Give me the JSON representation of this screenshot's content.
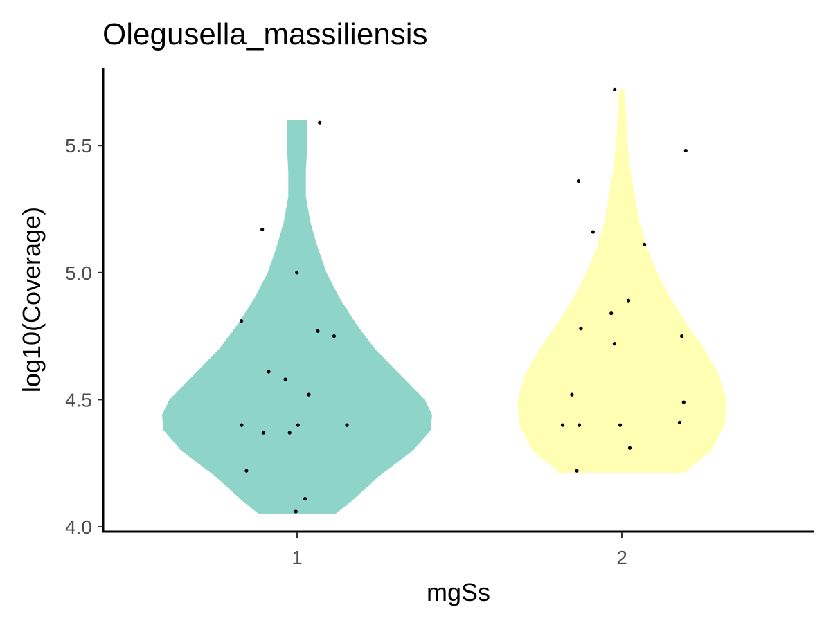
{
  "chart_data": {
    "type": "violin",
    "title": "Olegusella_massiliensis",
    "xlabel": "mgSs",
    "ylabel": "log10(Coverage)",
    "categories": [
      "1",
      "2"
    ],
    "ylim": [
      3.98,
      5.75
    ],
    "yticks": [
      "4.0",
      "4.5",
      "5.0",
      "5.5"
    ],
    "grid": false,
    "legend": "none",
    "colors": {
      "1": "#8ed4c8",
      "2": "#ffffb3",
      "points": "#000000",
      "axis": "#000000"
    },
    "violins": [
      {
        "category": "1",
        "min": 4.05,
        "max": 5.6,
        "density": [
          [
            4.05,
            0.26
          ],
          [
            4.1,
            0.37
          ],
          [
            4.2,
            0.56
          ],
          [
            4.3,
            0.79
          ],
          [
            4.38,
            0.91
          ],
          [
            4.44,
            0.92
          ],
          [
            4.5,
            0.87
          ],
          [
            4.6,
            0.7
          ],
          [
            4.7,
            0.53
          ],
          [
            4.8,
            0.4
          ],
          [
            4.9,
            0.29
          ],
          [
            5.0,
            0.2
          ],
          [
            5.1,
            0.14
          ],
          [
            5.2,
            0.09
          ],
          [
            5.3,
            0.06
          ],
          [
            5.4,
            0.06
          ],
          [
            5.5,
            0.07
          ],
          [
            5.6,
            0.07
          ]
        ],
        "points": [
          4.06,
          4.11,
          4.22,
          4.37,
          4.37,
          4.4,
          4.4,
          4.4,
          4.52,
          4.58,
          4.61,
          4.75,
          4.77,
          4.81,
          5.0,
          5.17,
          5.59
        ]
      },
      {
        "category": "2",
        "min": 4.21,
        "max": 5.72,
        "density": [
          [
            4.21,
            0.42
          ],
          [
            4.3,
            0.61
          ],
          [
            4.4,
            0.7
          ],
          [
            4.5,
            0.71
          ],
          [
            4.6,
            0.66
          ],
          [
            4.7,
            0.56
          ],
          [
            4.8,
            0.44
          ],
          [
            4.9,
            0.33
          ],
          [
            5.0,
            0.24
          ],
          [
            5.1,
            0.17
          ],
          [
            5.2,
            0.12
          ],
          [
            5.3,
            0.09
          ],
          [
            5.4,
            0.06
          ],
          [
            5.5,
            0.04
          ],
          [
            5.6,
            0.03
          ],
          [
            5.72,
            0.02
          ]
        ],
        "points": [
          4.22,
          4.31,
          4.4,
          4.4,
          4.4,
          4.41,
          4.49,
          4.52,
          4.72,
          4.75,
          4.78,
          4.84,
          4.89,
          5.11,
          5.16,
          5.36,
          5.48,
          5.72
        ]
      }
    ]
  }
}
